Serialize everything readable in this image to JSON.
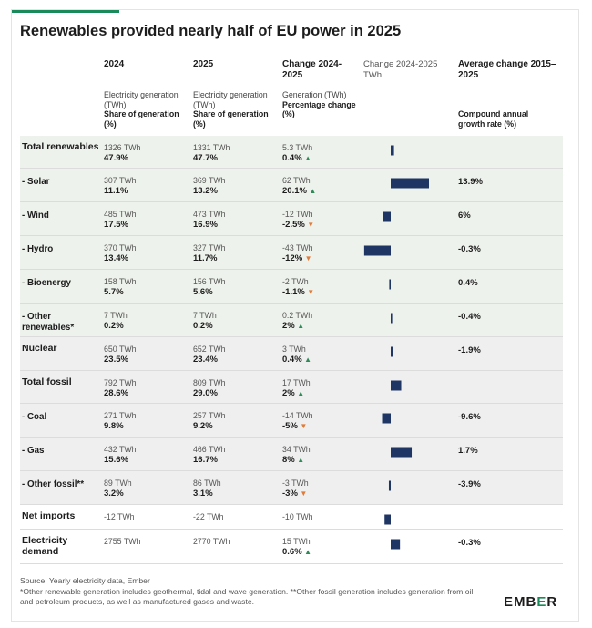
{
  "title": "Renewables provided nearly half of EU power in 2025",
  "headers": {
    "y2024": "2024",
    "y2025": "2025",
    "change": "Change 2024-2025",
    "change_chart": "Change 2024-2025",
    "change_chart_unit": "TWh",
    "avg": "Average change 2015–2025",
    "sub_gen": "Electricity generation (TWh)",
    "sub_share": "Share of generation (%)",
    "sub_change_gen": "Generation (TWh)",
    "sub_change_pct": "Percentage change (%)",
    "sub_cagr": "Compound annual growth rate (%)"
  },
  "rows": [
    {
      "label": "Total renewables",
      "gen2024": "1326 TWh",
      "share2024": "47.9%",
      "gen2025": "1331 TWh",
      "share2025": "47.7%",
      "change": "5.3 TWh",
      "pct": "0.4%",
      "dir": "up",
      "cagr": ""
    },
    {
      "label": "- Solar",
      "gen2024": "307 TWh",
      "share2024": "11.1%",
      "gen2025": "369 TWh",
      "share2025": "13.2%",
      "change": "62 TWh",
      "pct": "20.1%",
      "dir": "up",
      "cagr": "13.9%"
    },
    {
      "label": "- Wind",
      "gen2024": "485 TWh",
      "share2024": "17.5%",
      "gen2025": "473 TWh",
      "share2025": "16.9%",
      "change": "-12 TWh",
      "pct": "-2.5%",
      "dir": "down",
      "cagr": "6%"
    },
    {
      "label": "- Hydro",
      "gen2024": "370 TWh",
      "share2024": "13.4%",
      "gen2025": "327 TWh",
      "share2025": "11.7%",
      "change": "-43 TWh",
      "pct": "-12%",
      "dir": "down",
      "cagr": "-0.3%"
    },
    {
      "label": "- Bioenergy",
      "gen2024": "158 TWh",
      "share2024": "5.7%",
      "gen2025": "156 TWh",
      "share2025": "5.6%",
      "change": "-2 TWh",
      "pct": "-1.1%",
      "dir": "down",
      "cagr": "0.4%"
    },
    {
      "label": "- Other renewables*",
      "gen2024": "7 TWh",
      "share2024": "0.2%",
      "gen2025": "7 TWh",
      "share2025": "0.2%",
      "change": "0.2 TWh",
      "pct": "2%",
      "dir": "up",
      "cagr": "-0.4%"
    },
    {
      "label": "Nuclear",
      "gen2024": "650 TWh",
      "share2024": "23.5%",
      "gen2025": "652 TWh",
      "share2025": "23.4%",
      "change": "3 TWh",
      "pct": "0.4%",
      "dir": "up",
      "cagr": "-1.9%"
    },
    {
      "label": "Total fossil",
      "gen2024": "792 TWh",
      "share2024": "28.6%",
      "gen2025": "809 TWh",
      "share2025": "29.0%",
      "change": "17 TWh",
      "pct": "2%",
      "dir": "up",
      "cagr": ""
    },
    {
      "label": "- Coal",
      "gen2024": "271 TWh",
      "share2024": "9.8%",
      "gen2025": "257 TWh",
      "share2025": "9.2%",
      "change": "-14 TWh",
      "pct": "-5%",
      "dir": "down",
      "cagr": "-9.6%"
    },
    {
      "label": "- Gas",
      "gen2024": "432 TWh",
      "share2024": "15.6%",
      "gen2025": "466 TWh",
      "share2025": "16.7%",
      "change": "34 TWh",
      "pct": "8%",
      "dir": "up",
      "cagr": "1.7%"
    },
    {
      "label": "- Other fossil**",
      "gen2024": "89 TWh",
      "share2024": "3.2%",
      "gen2025": "86 TWh",
      "share2025": "3.1%",
      "change": "-3 TWh",
      "pct": "-3%",
      "dir": "down",
      "cagr": "-3.9%"
    },
    {
      "label": "Net imports",
      "gen2024": "-12 TWh",
      "share2024": "",
      "gen2025": "-22 TWh",
      "share2025": "",
      "change": "-10 TWh",
      "pct": "",
      "dir": "",
      "cagr": ""
    },
    {
      "label": "Electricity demand",
      "gen2024": "2755 TWh",
      "share2024": "",
      "gen2025": "2770 TWh",
      "share2025": "",
      "change": "15 TWh",
      "pct": "0.6%",
      "dir": "up",
      "cagr": "-0.3%"
    }
  ],
  "chart_data": {
    "type": "bar",
    "orientation": "horizontal",
    "title": "Change 2024-2025",
    "unit": "TWh",
    "categories": [
      "Total renewables",
      "- Solar",
      "- Wind",
      "- Hydro",
      "- Bioenergy",
      "- Other renewables*",
      "Nuclear",
      "Total fossil",
      "- Coal",
      "- Gas",
      "- Other fossil**",
      "Net imports",
      "Electricity demand"
    ],
    "values": [
      5.3,
      62,
      -12,
      -43,
      -2,
      0.2,
      3,
      17,
      -14,
      34,
      -3,
      -10,
      15
    ],
    "color": "#1f3564"
  },
  "footer": {
    "source": "Source: Yearly electricity data, Ember",
    "note": "*Other renewable generation includes geothermal, tidal and wave generation. **Other fossil generation includes generation from oil and petroleum products, as well as manufactured gases and waste."
  },
  "logo": {
    "pre": "EMB",
    "mid": "E",
    "post": "R"
  },
  "colors": {
    "accent": "#1a8a5a",
    "bar": "#1f3564",
    "up": "#2e8b57",
    "down": "#e07b39",
    "renewables_bg": "#eef2ec",
    "other_bg": "#efefef"
  }
}
